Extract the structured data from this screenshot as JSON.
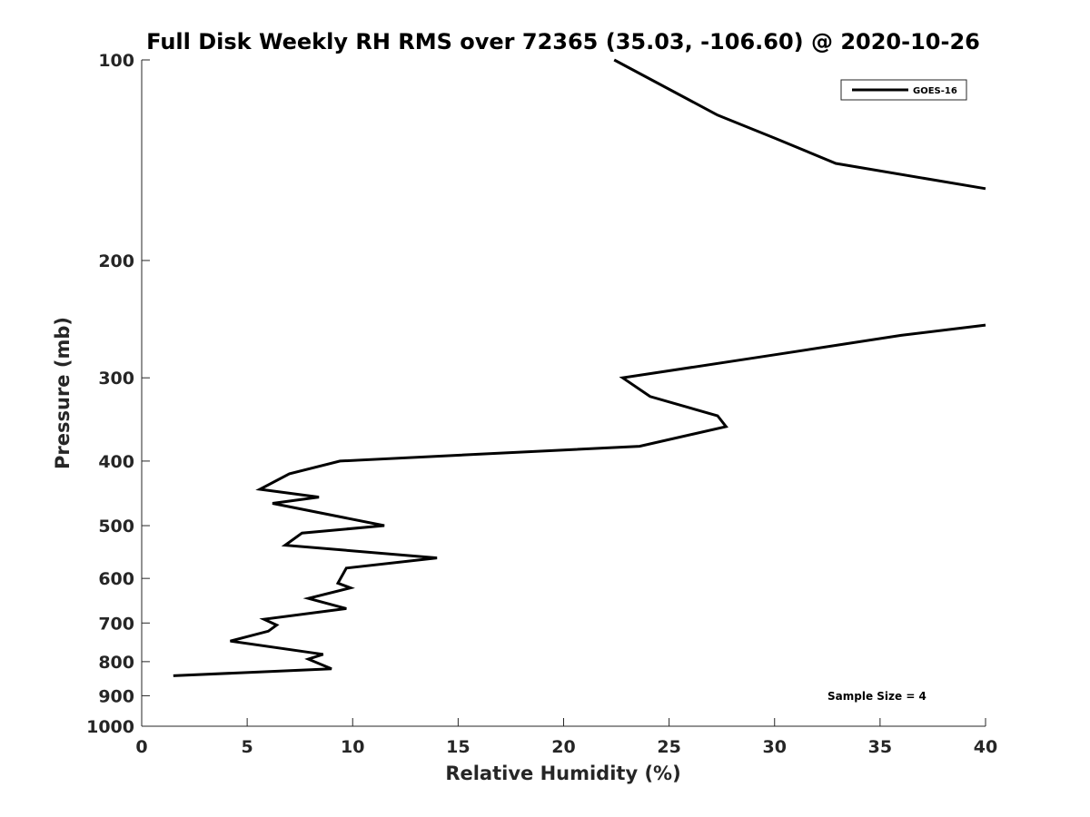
{
  "chart_data": {
    "type": "line",
    "title": "Full Disk Weekly RH RMS over 72365 (35.03, -106.60) @ 2020-10-26",
    "xlabel": "Relative Humidity (%)",
    "ylabel": "Pressure (mb)",
    "xlim": [
      0,
      40
    ],
    "ylim": [
      100,
      1000
    ],
    "yscale": "log",
    "yreversed": true,
    "xticks": [
      "0",
      "5",
      "10",
      "15",
      "20",
      "25",
      "30",
      "35",
      "40"
    ],
    "yticks": [
      "100",
      "200",
      "300",
      "400",
      "500",
      "600",
      "700",
      "800",
      "900",
      "1000"
    ],
    "grid": false,
    "legend": {
      "placement": "top-right",
      "entries": [
        "GOES-16"
      ]
    },
    "annotations": [
      "Sample Size = 4"
    ],
    "series": [
      {
        "name": "GOES-16",
        "color": "#000000",
        "segments": [
          [
            [
              22.4,
              100
            ],
            [
              27.3,
              121
            ],
            [
              30.0,
              131
            ],
            [
              32.9,
              143
            ],
            [
              40.0,
              156
            ]
          ],
          [
            [
              40.0,
              250
            ],
            [
              36.0,
              259
            ],
            [
              30.0,
              277
            ],
            [
              22.8,
              300
            ],
            [
              24.1,
              320
            ],
            [
              27.3,
              342
            ],
            [
              27.7,
              355
            ],
            [
              23.6,
              380
            ],
            [
              9.4,
              400
            ],
            [
              7.0,
              418
            ],
            [
              5.6,
              441
            ],
            [
              8.4,
              453
            ],
            [
              6.2,
              463
            ],
            [
              11.5,
              500
            ],
            [
              7.6,
              513
            ],
            [
              6.8,
              535
            ],
            [
              14.0,
              559
            ],
            [
              9.7,
              579
            ],
            [
              9.3,
              610
            ],
            [
              9.9,
              620
            ],
            [
              7.9,
              643
            ],
            [
              9.7,
              666
            ],
            [
              5.8,
              691
            ],
            [
              6.4,
              705
            ],
            [
              6.0,
              720
            ],
            [
              4.2,
              745
            ],
            [
              8.6,
              780
            ],
            [
              7.9,
              793
            ],
            [
              9.0,
              820
            ],
            [
              1.5,
              840
            ]
          ]
        ]
      }
    ]
  }
}
